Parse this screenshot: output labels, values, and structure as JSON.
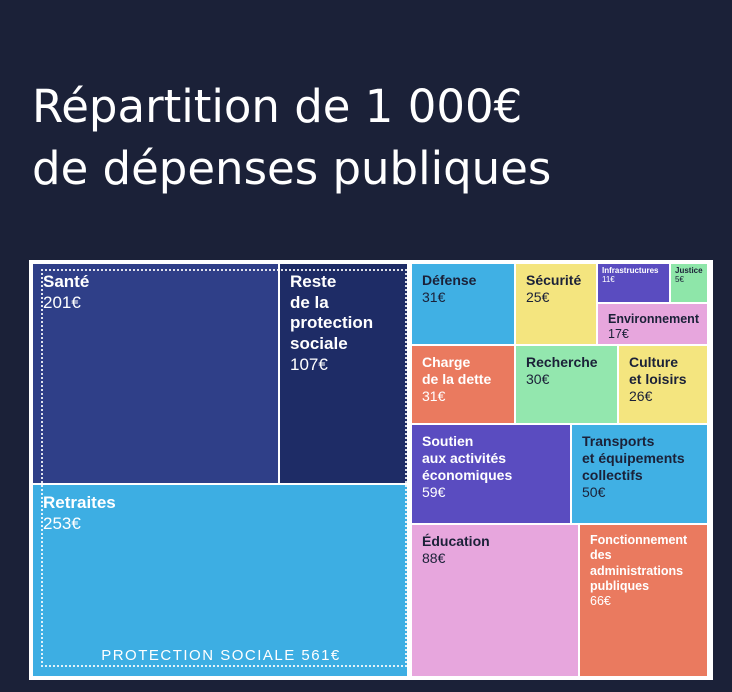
{
  "title": {
    "line1": "Répartition de 1 000€",
    "line2": "de dépenses publiques"
  },
  "group_label": "PROTECTION SOCIALE 561€",
  "chart_data": {
    "type": "treemap",
    "title": "Répartition de 1 000€ de dépenses publiques",
    "total": 1000,
    "unit": "€",
    "groups": [
      {
        "name": "PROTECTION SOCIALE",
        "value": 561,
        "children": [
          "Santé",
          "Reste de la protection sociale",
          "Retraites"
        ]
      }
    ],
    "items": [
      {
        "id": "sante",
        "lines": [
          "Santé"
        ],
        "value": "201€",
        "amount": 201,
        "color": "#2f3f88",
        "text": "white"
      },
      {
        "id": "reste",
        "lines": [
          "Reste",
          "de la",
          "protection",
          "sociale"
        ],
        "value": "107€",
        "amount": 107,
        "color": "#1e2c66",
        "text": "white"
      },
      {
        "id": "retraites",
        "lines": [
          "Retraites"
        ],
        "value": "253€",
        "amount": 253,
        "color": "#3daee3",
        "text": "white"
      },
      {
        "id": "defense",
        "lines": [
          "Défense"
        ],
        "value": "31€",
        "amount": 31,
        "color": "#40b0e4",
        "text": "dark"
      },
      {
        "id": "securite",
        "lines": [
          "Sécurité"
        ],
        "value": "25€",
        "amount": 25,
        "color": "#f4e57f",
        "text": "dark"
      },
      {
        "id": "infrastructures",
        "lines": [
          "Infrastructures"
        ],
        "value": "11€",
        "amount": 11,
        "color": "#5a4cc0",
        "text": "white"
      },
      {
        "id": "justice",
        "lines": [
          "Justice"
        ],
        "value": "5€",
        "amount": 5,
        "color": "#8ee6a9",
        "text": "dark"
      },
      {
        "id": "environnement",
        "lines": [
          "Environnement"
        ],
        "value": "17€",
        "amount": 17,
        "color": "#e7a6dd",
        "text": "dark"
      },
      {
        "id": "charge",
        "lines": [
          "Charge",
          "de la dette"
        ],
        "value": "31€",
        "amount": 31,
        "color": "#ea7a5f",
        "text": "white"
      },
      {
        "id": "recherche",
        "lines": [
          "Recherche"
        ],
        "value": "30€",
        "amount": 30,
        "color": "#93e7ae",
        "text": "dark"
      },
      {
        "id": "culture",
        "lines": [
          "Culture",
          "et loisirs"
        ],
        "value": "26€",
        "amount": 26,
        "color": "#f4e57f",
        "text": "dark"
      },
      {
        "id": "soutien",
        "lines": [
          "Soutien",
          "aux activités",
          "économiques"
        ],
        "value": "59€",
        "amount": 59,
        "color": "#5a4cc0",
        "text": "white"
      },
      {
        "id": "transports",
        "lines": [
          "Transports",
          "et équipements",
          "collectifs"
        ],
        "value": "50€",
        "amount": 50,
        "color": "#40b0e4",
        "text": "dark"
      },
      {
        "id": "education",
        "lines": [
          "Éducation"
        ],
        "value": "88€",
        "amount": 88,
        "color": "#e7a6dd",
        "text": "dark"
      },
      {
        "id": "fonctionnement",
        "lines": [
          "Fonctionnement",
          "des",
          "administrations",
          "publiques"
        ],
        "value": "66€",
        "amount": 66,
        "color": "#ea7a5f",
        "text": "white"
      }
    ]
  }
}
